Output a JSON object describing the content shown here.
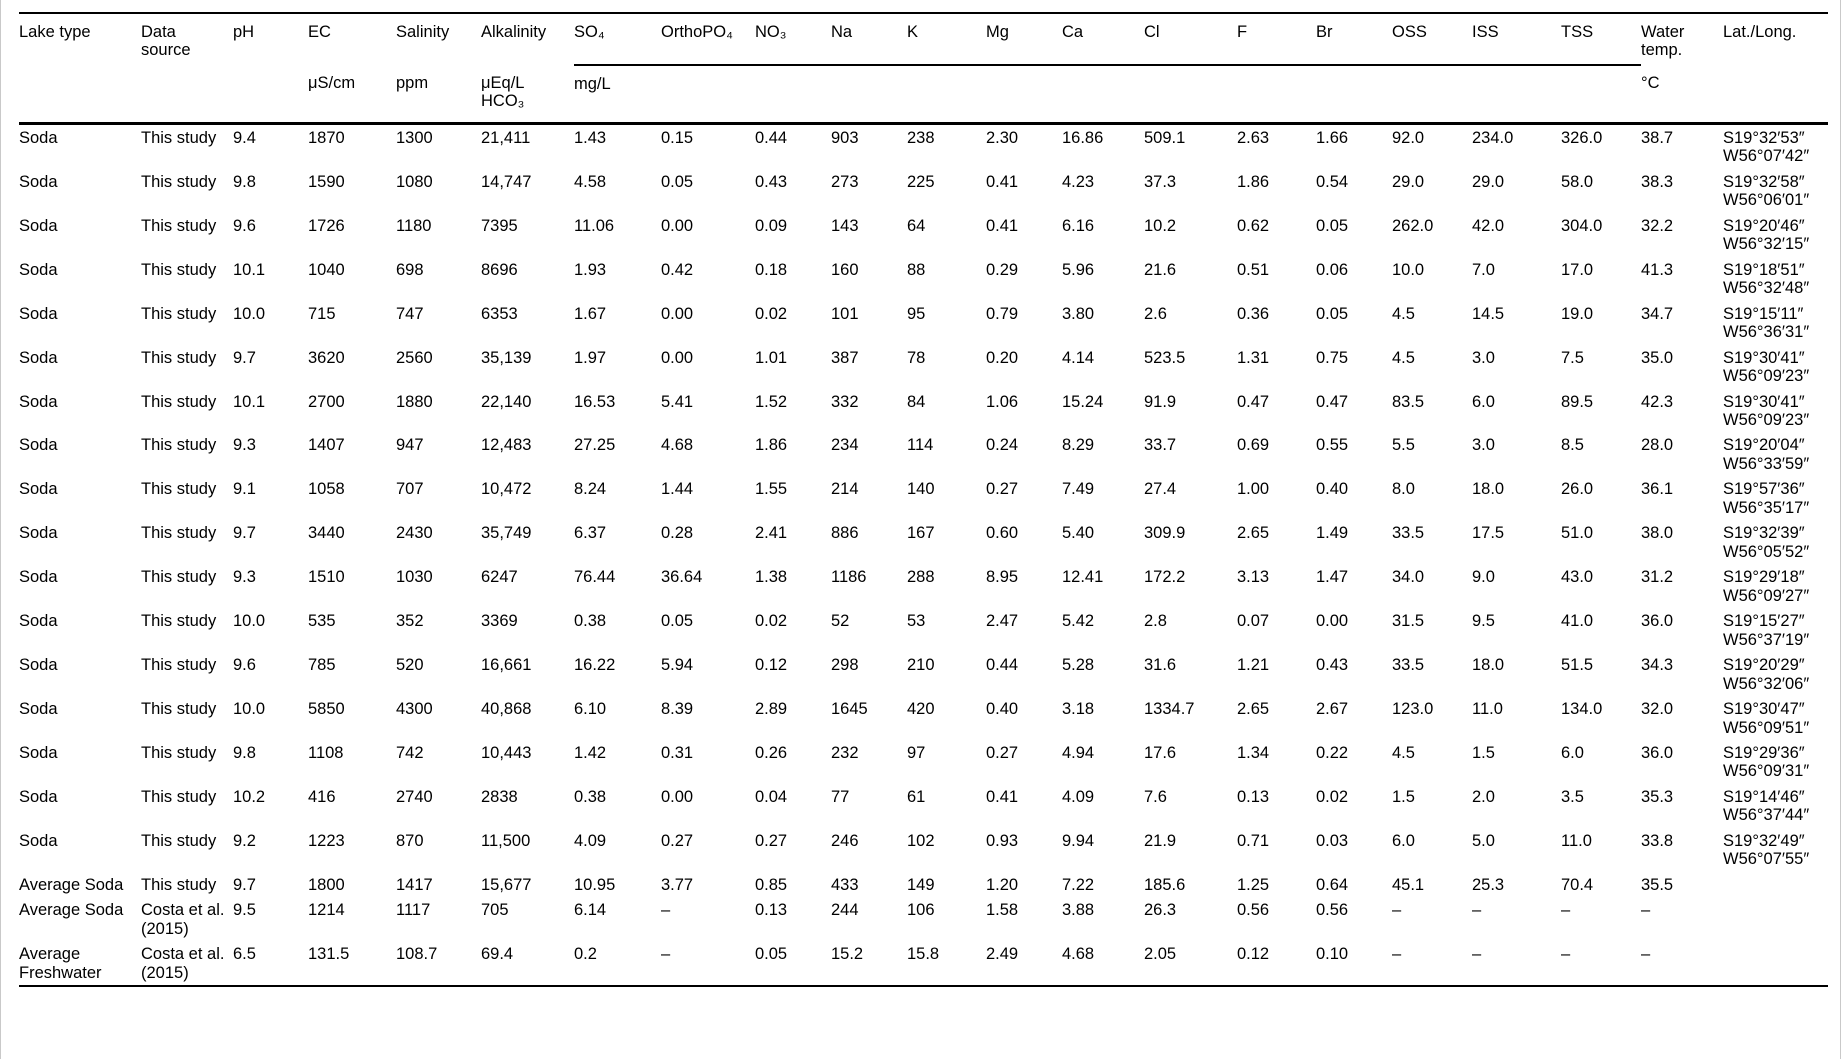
{
  "page": {
    "background_color": "#ffffff",
    "text_color": "#000000",
    "rule_color": "#000000"
  },
  "table": {
    "header": {
      "columns": [
        "Lake type",
        "Data source",
        "pH",
        "EC",
        "Salinity",
        "Alkalinity",
        "SO₄",
        "OrthoPO₄",
        "NO₃",
        "Na",
        "K",
        "Mg",
        "Ca",
        "Cl",
        "F",
        "Br",
        "OSS",
        "ISS",
        "TSS",
        "Water temp.",
        "Lat./Long."
      ],
      "units": [
        "",
        "",
        "",
        "μS/cm",
        "ppm",
        "μEq/L HCO₃",
        "",
        "",
        "",
        "",
        "",
        "",
        "",
        "",
        "",
        "",
        "",
        "",
        "",
        "°C",
        ""
      ],
      "unit_group": {
        "label": "mg/L",
        "start": 6,
        "span": 13
      }
    },
    "rows": [
      [
        "Soda",
        "This study",
        "9.4",
        "1870",
        "1300",
        "21,411",
        "1.43",
        "0.15",
        "0.44",
        "903",
        "238",
        "2.30",
        "16.86",
        "509.1",
        "2.63",
        "1.66",
        "92.0",
        "234.0",
        "326.0",
        "38.7",
        "S19°32′53″\nW56°07′42″"
      ],
      [
        "Soda",
        "This study",
        "9.8",
        "1590",
        "1080",
        "14,747",
        "4.58",
        "0.05",
        "0.43",
        "273",
        "225",
        "0.41",
        "4.23",
        "37.3",
        "1.86",
        "0.54",
        "29.0",
        "29.0",
        "58.0",
        "38.3",
        "S19°32′58″\nW56°06′01″"
      ],
      [
        "Soda",
        "This study",
        "9.6",
        "1726",
        "1180",
        "7395",
        "11.06",
        "0.00",
        "0.09",
        "143",
        "64",
        "0.41",
        "6.16",
        "10.2",
        "0.62",
        "0.05",
        "262.0",
        "42.0",
        "304.0",
        "32.2",
        "S19°20′46″\nW56°32′15″"
      ],
      [
        "Soda",
        "This study",
        "10.1",
        "1040",
        "698",
        "8696",
        "1.93",
        "0.42",
        "0.18",
        "160",
        "88",
        "0.29",
        "5.96",
        "21.6",
        "0.51",
        "0.06",
        "10.0",
        "7.0",
        "17.0",
        "41.3",
        "S19°18′51″\nW56°32′48″"
      ],
      [
        "Soda",
        "This study",
        "10.0",
        "715",
        "747",
        "6353",
        "1.67",
        "0.00",
        "0.02",
        "101",
        "95",
        "0.79",
        "3.80",
        "2.6",
        "0.36",
        "0.05",
        "4.5",
        "14.5",
        "19.0",
        "34.7",
        "S19°15′11″\nW56°36′31″"
      ],
      [
        "Soda",
        "This study",
        "9.7",
        "3620",
        "2560",
        "35,139",
        "1.97",
        "0.00",
        "1.01",
        "387",
        "78",
        "0.20",
        "4.14",
        "523.5",
        "1.31",
        "0.75",
        "4.5",
        "3.0",
        "7.5",
        "35.0",
        "S19°30′41″\nW56°09′23″"
      ],
      [
        "Soda",
        "This study",
        "10.1",
        "2700",
        "1880",
        "22,140",
        "16.53",
        "5.41",
        "1.52",
        "332",
        "84",
        "1.06",
        "15.24",
        "91.9",
        "0.47",
        "0.47",
        "83.5",
        "6.0",
        "89.5",
        "42.3",
        "S19°30′41″\nW56°09′23″"
      ],
      [
        "Soda",
        "This study",
        "9.3",
        "1407",
        "947",
        "12,483",
        "27.25",
        "4.68",
        "1.86",
        "234",
        "114",
        "0.24",
        "8.29",
        "33.7",
        "0.69",
        "0.55",
        "5.5",
        "3.0",
        "8.5",
        "28.0",
        "S19°20′04″\nW56°33′59″"
      ],
      [
        "Soda",
        "This study",
        "9.1",
        "1058",
        "707",
        "10,472",
        "8.24",
        "1.44",
        "1.55",
        "214",
        "140",
        "0.27",
        "7.49",
        "27.4",
        "1.00",
        "0.40",
        "8.0",
        "18.0",
        "26.0",
        "36.1",
        "S19°57′36″\nW56°35′17″"
      ],
      [
        "Soda",
        "This study",
        "9.7",
        "3440",
        "2430",
        "35,749",
        "6.37",
        "0.28",
        "2.41",
        "886",
        "167",
        "0.60",
        "5.40",
        "309.9",
        "2.65",
        "1.49",
        "33.5",
        "17.5",
        "51.0",
        "38.0",
        "S19°32′39″\nW56°05′52″"
      ],
      [
        "Soda",
        "This study",
        "9.3",
        "1510",
        "1030",
        "6247",
        "76.44",
        "36.64",
        "1.38",
        "1186",
        "288",
        "8.95",
        "12.41",
        "172.2",
        "3.13",
        "1.47",
        "34.0",
        "9.0",
        "43.0",
        "31.2",
        "S19°29′18″\nW56°09′27″"
      ],
      [
        "Soda",
        "This study",
        "10.0",
        "535",
        "352",
        "3369",
        "0.38",
        "0.05",
        "0.02",
        "52",
        "53",
        "2.47",
        "5.42",
        "2.8",
        "0.07",
        "0.00",
        "31.5",
        "9.5",
        "41.0",
        "36.0",
        "S19°15′27″\nW56°37′19″"
      ],
      [
        "Soda",
        "This study",
        "9.6",
        "785",
        "520",
        "16,661",
        "16.22",
        "5.94",
        "0.12",
        "298",
        "210",
        "0.44",
        "5.28",
        "31.6",
        "1.21",
        "0.43",
        "33.5",
        "18.0",
        "51.5",
        "34.3",
        "S19°20′29″\nW56°32′06″"
      ],
      [
        "Soda",
        "This study",
        "10.0",
        "5850",
        "4300",
        "40,868",
        "6.10",
        "8.39",
        "2.89",
        "1645",
        "420",
        "0.40",
        "3.18",
        "1334.7",
        "2.65",
        "2.67",
        "123.0",
        "11.0",
        "134.0",
        "32.0",
        "S19°30′47″\nW56°09′51″"
      ],
      [
        "Soda",
        "This study",
        "9.8",
        "1108",
        "742",
        "10,443",
        "1.42",
        "0.31",
        "0.26",
        "232",
        "97",
        "0.27",
        "4.94",
        "17.6",
        "1.34",
        "0.22",
        "4.5",
        "1.5",
        "6.0",
        "36.0",
        "S19°29′36″\nW56°09′31″"
      ],
      [
        "Soda",
        "This study",
        "10.2",
        "416",
        "2740",
        "2838",
        "0.38",
        "0.00",
        "0.04",
        "77",
        "61",
        "0.41",
        "4.09",
        "7.6",
        "0.13",
        "0.02",
        "1.5",
        "2.0",
        "3.5",
        "35.3",
        "S19°14′46″\nW56°37′44″"
      ],
      [
        "Soda",
        "This study",
        "9.2",
        "1223",
        "870",
        "11,500",
        "4.09",
        "0.27",
        "0.27",
        "246",
        "102",
        "0.93",
        "9.94",
        "21.9",
        "0.71",
        "0.03",
        "6.0",
        "5.0",
        "11.0",
        "33.8",
        "S19°32′49″\nW56°07′55″"
      ],
      [
        "Average Soda",
        "This study",
        "9.7",
        "1800",
        "1417",
        "15,677",
        "10.95",
        "3.77",
        "0.85",
        "433",
        "149",
        "1.20",
        "7.22",
        "185.6",
        "1.25",
        "0.64",
        "45.1",
        "25.3",
        "70.4",
        "35.5",
        ""
      ],
      [
        "Average Soda",
        "Costa et al. (2015)",
        "9.5",
        "1214",
        "1117",
        "705",
        "6.14",
        "–",
        "0.13",
        "244",
        "106",
        "1.58",
        "3.88",
        "26.3",
        "0.56",
        "0.56",
        "–",
        "–",
        "–",
        "–",
        ""
      ],
      [
        "Average Freshwater",
        "Costa et al. (2015)",
        "6.5",
        "131.5",
        "108.7",
        "69.4",
        "0.2",
        "–",
        "0.05",
        "15.2",
        "15.8",
        "2.49",
        "4.68",
        "2.05",
        "0.12",
        "0.10",
        "–",
        "–",
        "–",
        "–",
        ""
      ]
    ]
  }
}
